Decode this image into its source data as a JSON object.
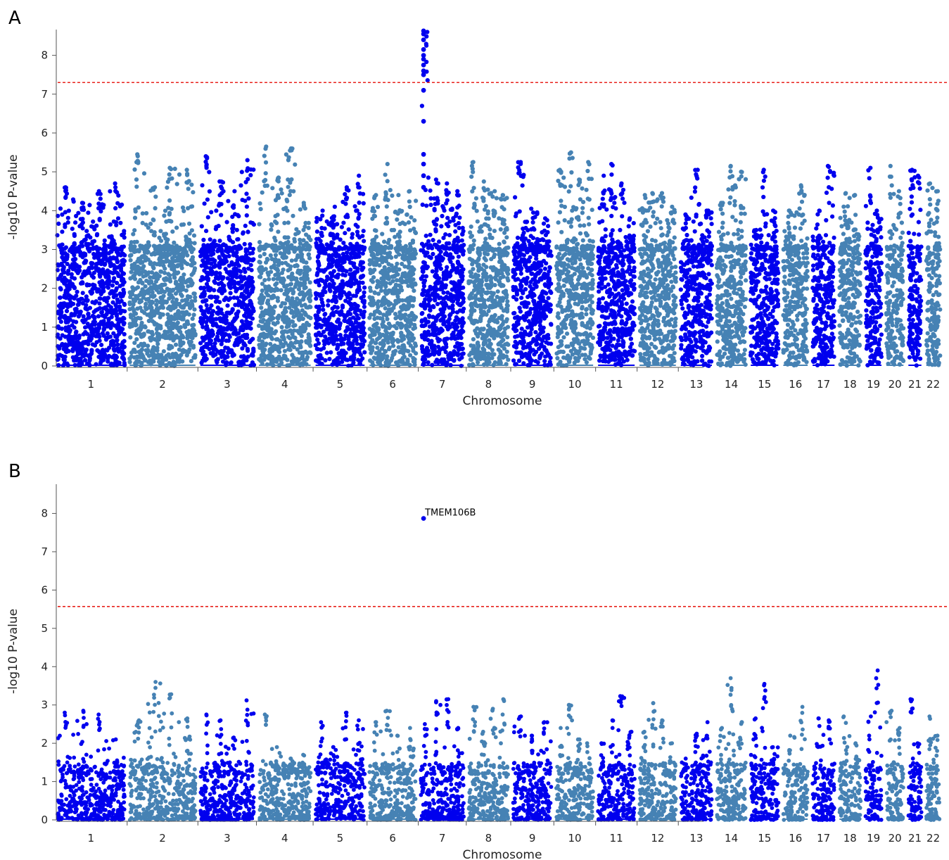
{
  "figure": {
    "panels": [
      "A",
      "B"
    ]
  },
  "colors": {
    "odd_chromosomes": "#0000ee",
    "even_chromosomes": "#4682b4",
    "threshold": "#e8231c",
    "axis": "#555555"
  },
  "chart_data": [
    {
      "panel": "A",
      "type": "scatter",
      "subtype": "manhattan",
      "xlabel": "Chromosome",
      "ylabel": "-log10 P-value",
      "ylim": [
        0,
        8.7
      ],
      "yticks": [
        0,
        1,
        2,
        3,
        4,
        5,
        6,
        7,
        8
      ],
      "grid": false,
      "threshold": 7.3,
      "chromosomes": [
        {
          "label": "1",
          "length": 249,
          "top": [
            4.6,
            4.2,
            4.5,
            4.7
          ]
        },
        {
          "label": "2",
          "length": 243,
          "top": [
            5.45,
            4.6,
            5.1,
            5.05
          ]
        },
        {
          "label": "3",
          "length": 198,
          "top": [
            5.4,
            4.75,
            4.5,
            5.3
          ]
        },
        {
          "label": "4",
          "length": 191,
          "top": [
            5.65,
            4.85,
            5.6,
            4.2
          ]
        },
        {
          "label": "5",
          "length": 181,
          "top": [
            4.0,
            4.1,
            4.6,
            4.9
          ]
        },
        {
          "label": "6",
          "length": 171,
          "top": [
            4.4,
            5.2,
            4.4,
            4.5
          ]
        },
        {
          "label": "7",
          "length": 159,
          "top": [
            8.6,
            4.8,
            4.7,
            4.5
          ]
        },
        {
          "label": "8",
          "length": 146,
          "top": [
            5.25,
            4.75,
            4.5,
            4.4
          ]
        },
        {
          "label": "9",
          "length": 141,
          "top": [
            5.25,
            4.05,
            3.8
          ]
        },
        {
          "label": "10",
          "length": 136,
          "top": [
            5.05,
            5.5,
            4.8,
            5.25
          ]
        },
        {
          "label": "11",
          "length": 135,
          "top": [
            4.9,
            5.2,
            4.7,
            3.8
          ]
        },
        {
          "label": "12",
          "length": 134,
          "top": [
            4.4,
            4.45,
            4.45,
            4.1
          ]
        },
        {
          "label": "13",
          "length": 115,
          "top": [
            3.9,
            5.05,
            4.0
          ]
        },
        {
          "label": "14",
          "length": 107,
          "top": [
            4.2,
            5.15,
            5.0
          ]
        },
        {
          "label": "15",
          "length": 102,
          "top": [
            3.5,
            5.05,
            4.0
          ]
        },
        {
          "label": "16",
          "length": 90,
          "top": [
            4.0,
            4.65
          ]
        },
        {
          "label": "17",
          "length": 81,
          "top": [
            4.0,
            5.15
          ]
        },
        {
          "label": "18",
          "length": 78,
          "top": [
            4.45,
            4.4
          ]
        },
        {
          "label": "19",
          "length": 59,
          "top": [
            5.1,
            4.0
          ]
        },
        {
          "label": "20",
          "length": 63,
          "top": [
            5.15,
            4.5
          ]
        },
        {
          "label": "21",
          "length": 48,
          "top": [
            5.05,
            4.9
          ]
        },
        {
          "label": "22",
          "length": 51,
          "top": [
            4.7,
            4.5
          ]
        }
      ],
      "highlight_points": [
        {
          "chromosome": "7",
          "position": 12.2,
          "values": [
            8.63,
            8.55,
            8.4,
            8.15,
            8.0,
            7.9,
            7.75,
            7.6,
            7.5,
            7.1,
            6.3,
            5.45,
            5.2,
            4.9,
            4.6
          ]
        }
      ]
    },
    {
      "panel": "B",
      "type": "scatter",
      "subtype": "manhattan",
      "xlabel": "Chromosome",
      "ylabel": "-log10 P-value",
      "ylim": [
        0,
        8.8
      ],
      "yticks": [
        0,
        1,
        2,
        3,
        4,
        5,
        6,
        7,
        8
      ],
      "grid": false,
      "threshold": 5.57,
      "chromosomes": [
        {
          "label": "1",
          "length": 249,
          "top": [
            2.8,
            2.85,
            2.75,
            2.1
          ]
        },
        {
          "label": "2",
          "length": 243,
          "top": [
            2.6,
            3.6,
            3.28,
            2.65
          ]
        },
        {
          "label": "3",
          "length": 198,
          "top": [
            2.75,
            2.6,
            2.15,
            3.12
          ]
        },
        {
          "label": "4",
          "length": 191,
          "top": [
            2.75,
            1.9,
            1.6,
            1.7
          ]
        },
        {
          "label": "5",
          "length": 181,
          "top": [
            2.55,
            1.9,
            2.8,
            2.6
          ]
        },
        {
          "label": "6",
          "length": 171,
          "top": [
            2.55,
            2.85,
            2.2,
            2.4
          ]
        },
        {
          "label": "7",
          "length": 159,
          "top": [
            2.5,
            3.1,
            3.15,
            2.4
          ]
        },
        {
          "label": "8",
          "length": 146,
          "top": [
            2.95,
            2.3,
            2.9,
            3.15
          ]
        },
        {
          "label": "9",
          "length": 141,
          "top": [
            2.7,
            2.2,
            2.55
          ]
        },
        {
          "label": "10",
          "length": 136,
          "top": [
            2.4,
            3.0,
            2.1,
            2.0
          ]
        },
        {
          "label": "11",
          "length": 135,
          "top": [
            2.0,
            2.6,
            3.23,
            2.3
          ]
        },
        {
          "label": "12",
          "length": 134,
          "top": [
            2.3,
            3.05,
            2.6,
            2.0
          ]
        },
        {
          "label": "13",
          "length": 115,
          "top": [
            1.6,
            2.25,
            2.55
          ]
        },
        {
          "label": "14",
          "length": 107,
          "top": [
            2.4,
            3.7,
            2.55
          ]
        },
        {
          "label": "15",
          "length": 102,
          "top": [
            2.65,
            3.55,
            1.9
          ]
        },
        {
          "label": "16",
          "length": 90,
          "top": [
            2.2,
            2.95
          ]
        },
        {
          "label": "17",
          "length": 81,
          "top": [
            2.65,
            2.6
          ]
        },
        {
          "label": "18",
          "length": 78,
          "top": [
            2.7,
            2.0
          ]
        },
        {
          "label": "19",
          "length": 59,
          "top": [
            2.7,
            3.9
          ]
        },
        {
          "label": "20",
          "length": 63,
          "top": [
            2.85,
            2.4
          ]
        },
        {
          "label": "21",
          "length": 48,
          "top": [
            3.15,
            2.0
          ]
        },
        {
          "label": "22",
          "length": 51,
          "top": [
            2.7,
            2.2
          ]
        }
      ],
      "highlight_points": [
        {
          "chromosome": "7",
          "position": 12.2,
          "values": [
            7.87
          ],
          "annotation": "TMEM106B"
        }
      ]
    }
  ]
}
